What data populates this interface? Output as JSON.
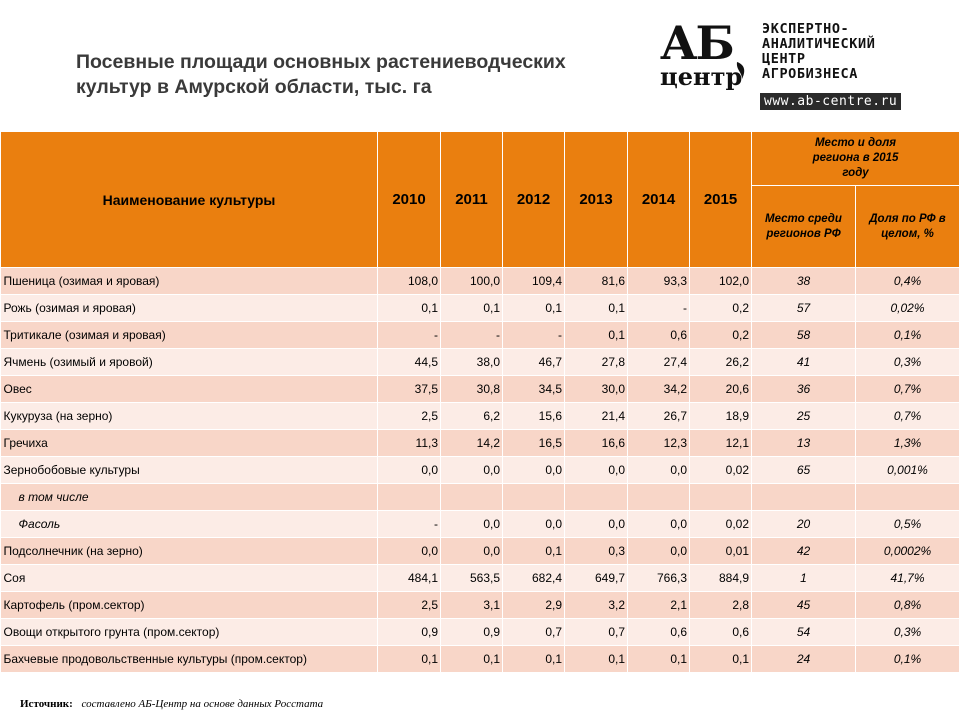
{
  "title": "Посевные площади основных растениеводческих культур в Амурской области, тыс. га",
  "logo": {
    "mark_top": "АБ",
    "mark_bottom": "центр",
    "lines": [
      "ЭКСПЕРТНО-",
      "АНАЛИТИЧЕСКИЙ",
      "ЦЕНТР",
      "АГРОБИЗНЕСА"
    ],
    "url": "www.ab-centre.ru"
  },
  "colors": {
    "header": "#ea7f0f",
    "row_odd": "#f8d6c8",
    "row_even": "#fcece6"
  },
  "table": {
    "header": {
      "name": "Наименование культуры",
      "years": [
        "2010",
        "2011",
        "2012",
        "2013",
        "2014",
        "2015"
      ],
      "group": "Место и доля региона в 2015 году",
      "rank": "Место среди регионов РФ",
      "share": "Доля по РФ в целом, %"
    },
    "rows": [
      {
        "name": "Пшеница (озимая и яровая)",
        "values": [
          "108,0",
          "100,0",
          "109,4",
          "81,6",
          "93,3",
          "102,0"
        ],
        "rank": "38",
        "share": "0,4%"
      },
      {
        "name": "Рожь (озимая и яровая)",
        "values": [
          "0,1",
          "0,1",
          "0,1",
          "0,1",
          "-",
          "0,2"
        ],
        "rank": "57",
        "share": "0,02%"
      },
      {
        "name": "Тритикале (озимая и яровая)",
        "values": [
          "-",
          "-",
          "-",
          "0,1",
          "0,6",
          "0,2"
        ],
        "rank": "58",
        "share": "0,1%"
      },
      {
        "name": "Ячмень (озимый и яровой)",
        "values": [
          "44,5",
          "38,0",
          "46,7",
          "27,8",
          "27,4",
          "26,2"
        ],
        "rank": "41",
        "share": "0,3%"
      },
      {
        "name": "Овес",
        "values": [
          "37,5",
          "30,8",
          "34,5",
          "30,0",
          "34,2",
          "20,6"
        ],
        "rank": "36",
        "share": "0,7%"
      },
      {
        "name": "Кукуруза (на зерно)",
        "values": [
          "2,5",
          "6,2",
          "15,6",
          "21,4",
          "26,7",
          "18,9"
        ],
        "rank": "25",
        "share": "0,7%"
      },
      {
        "name": "Гречиха",
        "values": [
          "11,3",
          "14,2",
          "16,5",
          "16,6",
          "12,3",
          "12,1"
        ],
        "rank": "13",
        "share": "1,3%"
      },
      {
        "name": "Зернобобовые культуры",
        "values": [
          "0,0",
          "0,0",
          "0,0",
          "0,0",
          "0,0",
          "0,02"
        ],
        "rank": "65",
        "share": "0,001%"
      },
      {
        "name": "в том числе",
        "indent": true,
        "values": [
          "",
          "",
          "",
          "",
          "",
          ""
        ],
        "rank": "",
        "share": ""
      },
      {
        "name": "Фасоль",
        "indent": true,
        "values": [
          "-",
          "0,0",
          "0,0",
          "0,0",
          "0,0",
          "0,02"
        ],
        "rank": "20",
        "share": "0,5%"
      },
      {
        "name": "Подсолнечник (на зерно)",
        "values": [
          "0,0",
          "0,0",
          "0,1",
          "0,3",
          "0,0",
          "0,01"
        ],
        "rank": "42",
        "share": "0,0002%"
      },
      {
        "name": "Соя",
        "values": [
          "484,1",
          "563,5",
          "682,4",
          "649,7",
          "766,3",
          "884,9"
        ],
        "rank": "1",
        "share": "41,7%"
      },
      {
        "name": "Картофель (пром.сектор)",
        "values": [
          "2,5",
          "3,1",
          "2,9",
          "3,2",
          "2,1",
          "2,8"
        ],
        "rank": "45",
        "share": "0,8%"
      },
      {
        "name": "Овощи открытого грунта (пром.сектор)",
        "values": [
          "0,9",
          "0,9",
          "0,7",
          "0,7",
          "0,6",
          "0,6"
        ],
        "rank": "54",
        "share": "0,3%"
      },
      {
        "name": "Бахчевые продовольственные культуры (пром.сектор)",
        "values": [
          "0,1",
          "0,1",
          "0,1",
          "0,1",
          "0,1",
          "0,1"
        ],
        "rank": "24",
        "share": "0,1%"
      }
    ]
  },
  "source": {
    "label": "Источник:",
    "text": "составлено АБ-Центр на основе данных Росстата"
  }
}
